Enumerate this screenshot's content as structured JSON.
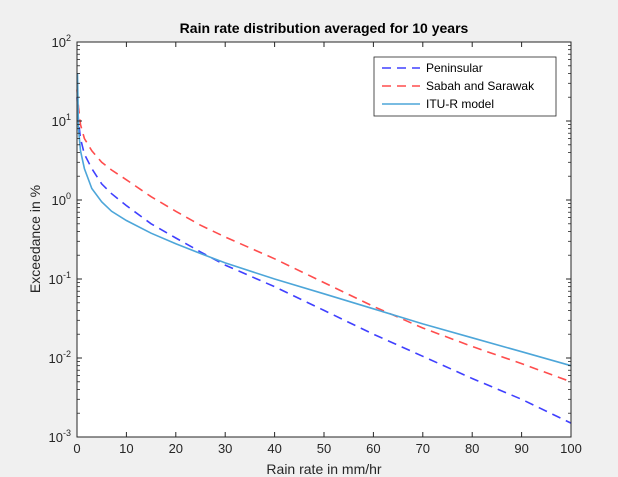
{
  "chart_data": {
    "type": "line",
    "title": "Rain rate distribution averaged for 10 years",
    "xlabel": "Rain rate in mm/hr",
    "ylabel": "Exceedance in %",
    "xlim": [
      0,
      100
    ],
    "ylim": [
      0.001,
      100
    ],
    "yscale": "log",
    "x_ticks": [
      0,
      10,
      20,
      30,
      40,
      50,
      60,
      70,
      80,
      90,
      100
    ],
    "y_ticks": [
      {
        "base": "10",
        "exp": "-3",
        "value": 0.001
      },
      {
        "base": "10",
        "exp": "-2",
        "value": 0.01
      },
      {
        "base": "10",
        "exp": "-1",
        "value": 0.1
      },
      {
        "base": "10",
        "exp": "0",
        "value": 1
      },
      {
        "base": "10",
        "exp": "1",
        "value": 10
      },
      {
        "base": "10",
        "exp": "2",
        "value": 100
      }
    ],
    "grid": false,
    "legend_position": "top-right",
    "series": [
      {
        "name": "Peninsular",
        "color": "#4040ff",
        "style": "dashed",
        "x": [
          0,
          0.3,
          0.7,
          1.5,
          3,
          5,
          7,
          10,
          15,
          20,
          25,
          30,
          40,
          50,
          60,
          70,
          80,
          90,
          100
        ],
        "y": [
          20,
          10,
          6,
          3.8,
          2.5,
          1.6,
          1.2,
          0.85,
          0.5,
          0.33,
          0.22,
          0.15,
          0.08,
          0.04,
          0.02,
          0.0105,
          0.0055,
          0.003,
          0.0015
        ]
      },
      {
        "name": "Sabah and Sarawak",
        "color": "#ff4d4d",
        "style": "dashed",
        "x": [
          0,
          0.3,
          0.7,
          1.5,
          3,
          5,
          7,
          10,
          15,
          20,
          25,
          30,
          40,
          50,
          60,
          70,
          80,
          90,
          100
        ],
        "y": [
          25,
          15,
          9,
          6,
          4.2,
          3.0,
          2.4,
          1.8,
          1.1,
          0.72,
          0.48,
          0.34,
          0.18,
          0.09,
          0.045,
          0.024,
          0.014,
          0.0085,
          0.005
        ]
      },
      {
        "name": "ITU-R model",
        "color": "#4da6d9",
        "style": "solid",
        "x": [
          0.1,
          0.3,
          0.7,
          1.5,
          3,
          5,
          7,
          10,
          15,
          20,
          25,
          30,
          40,
          50,
          60,
          70,
          80,
          90,
          100
        ],
        "y": [
          40,
          8,
          4.2,
          2.5,
          1.4,
          0.95,
          0.72,
          0.55,
          0.38,
          0.28,
          0.21,
          0.16,
          0.1,
          0.065,
          0.042,
          0.027,
          0.018,
          0.012,
          0.008
        ]
      }
    ]
  }
}
